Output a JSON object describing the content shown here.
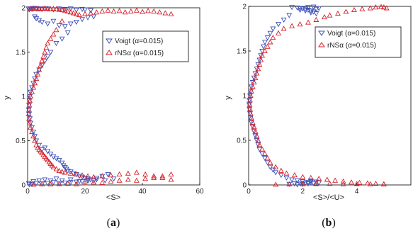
{
  "chart_data": [
    {
      "type": "scatter",
      "panel_caption": "a",
      "xlabel": "<S>",
      "ylabel": "y",
      "xlim": [
        0,
        60
      ],
      "ylim": [
        0,
        2
      ],
      "xticks": [
        "0",
        "20",
        "40",
        "60"
      ],
      "yticks": [
        "0",
        "0.5",
        "1",
        "1.5",
        "2"
      ],
      "legend_position": "top-right",
      "series": [
        {
          "name": "Voigt (α=0.015)",
          "marker": "triangle-down",
          "color": "#3b4fb8",
          "x": [
            0.3,
            0.6,
            1.0,
            1.5,
            2.0,
            3.0,
            4.0,
            5.0,
            6.0,
            2.0,
            3.0,
            5.0,
            7.0,
            9.0,
            11.0,
            13.0,
            15.0,
            17.0,
            19.0,
            20.0,
            22.0,
            2.5,
            3.0,
            4.0,
            5.0,
            7.0,
            9.0,
            11.0,
            13.0,
            15.0,
            17.0,
            19.0,
            21.0,
            23.0,
            14.0,
            12.0,
            10.0,
            8.0,
            7.0,
            6.0,
            5.0,
            4.0,
            3.0,
            2.5,
            2.0,
            1.5,
            1.0,
            0.8,
            0.6,
            0.5,
            0.4,
            0.5,
            0.8,
            1.0,
            1.5,
            2.0,
            2.5,
            3.0,
            4.0,
            5.0,
            6.0,
            7.0,
            8.0,
            9.0,
            10.0,
            11.0,
            12.0,
            12.5,
            13.0,
            13.5,
            14.0,
            15.0,
            16.0,
            17.0,
            18.0,
            19.0,
            20.0,
            21.0,
            22.0,
            24.0,
            26.0,
            28.0,
            2.0,
            4.0,
            6.0,
            8.0,
            10.0,
            12.0,
            15.0,
            18.0,
            21.0,
            24.0,
            27.0,
            30.0,
            1.5,
            3.0,
            5.0,
            7.0,
            9.0,
            11.0,
            13.0,
            15.0,
            17.0,
            19.0,
            21.0,
            23.0,
            0.6,
            0.4
          ],
          "y": [
            1.99,
            1.98,
            1.99,
            1.985,
            1.99,
            1.995,
            1.99,
            1.985,
            1.99,
            1.995,
            1.99,
            1.985,
            1.99,
            1.98,
            1.99,
            1.985,
            1.99,
            1.975,
            1.985,
            1.98,
            1.97,
            1.9,
            1.88,
            1.86,
            1.84,
            1.82,
            1.85,
            1.8,
            1.79,
            1.82,
            1.84,
            1.87,
            1.89,
            1.9,
            1.72,
            1.65,
            1.6,
            1.5,
            1.45,
            1.4,
            1.35,
            1.3,
            1.25,
            1.2,
            1.15,
            1.1,
            1.05,
            1.0,
            0.95,
            0.9,
            0.85,
            0.8,
            0.75,
            0.7,
            0.65,
            0.6,
            0.55,
            0.5,
            0.45,
            0.4,
            0.42,
            0.38,
            0.35,
            0.32,
            0.3,
            0.28,
            0.25,
            0.22,
            0.2,
            0.18,
            0.16,
            0.15,
            0.13,
            0.12,
            0.1,
            0.09,
            0.08,
            0.07,
            0.06,
            0.08,
            0.1,
            0.12,
            0.04,
            0.05,
            0.06,
            0.05,
            0.07,
            0.05,
            0.06,
            0.04,
            0.05,
            0.06,
            0.05,
            0.07,
            0.01,
            0.02,
            0.015,
            0.02,
            0.03,
            0.02,
            0.025,
            0.03,
            0.035,
            0.04,
            0.045,
            0.05,
            0.005,
            0.02
          ]
        },
        {
          "name": "rNSα (α=0.015)",
          "marker": "triangle-up",
          "color": "#d6202a",
          "x": [
            1.0,
            2.0,
            3.0,
            4.0,
            5.0,
            6.0,
            7.0,
            8.0,
            9.0,
            10.0,
            11.0,
            12.0,
            13.0,
            14.0,
            15.0,
            16.0,
            17.0,
            18.0,
            20.0,
            22.0,
            24.0,
            26.0,
            28.0,
            30.0,
            32.0,
            34.0,
            36.0,
            38.0,
            40.0,
            42.0,
            44.0,
            46.0,
            48.0,
            50.0,
            12.0,
            10.0,
            9.0,
            8.0,
            7.0,
            6.5,
            6.0,
            5.5,
            5.0,
            4.5,
            4.0,
            3.5,
            3.0,
            2.5,
            2.0,
            1.5,
            1.0,
            0.8,
            0.6,
            0.5,
            0.4,
            0.5,
            0.7,
            1.0,
            1.5,
            2.0,
            2.5,
            3.0,
            3.5,
            4.0,
            4.5,
            5.0,
            5.5,
            6.0,
            6.5,
            7.0,
            7.5,
            8.0,
            8.5,
            9.0,
            10.0,
            11.0,
            12.0,
            13.0,
            15.0,
            17.0,
            19.0,
            21.0,
            23.0,
            26.0,
            29.0,
            32.0,
            35.0,
            38.0,
            41.0,
            44.0,
            47.0,
            50.0,
            2.0,
            5.0,
            8.0,
            11.0,
            14.0,
            17.0,
            20.0,
            23.0,
            26.0,
            29.0,
            32.0,
            35.0,
            38.0,
            41.0,
            44.0,
            47.0,
            50.0
          ],
          "y": [
            1.99,
            1.995,
            1.99,
            1.985,
            1.99,
            1.995,
            1.99,
            1.985,
            1.99,
            1.985,
            1.98,
            1.975,
            1.97,
            1.96,
            1.95,
            1.94,
            1.93,
            1.92,
            1.93,
            1.94,
            1.95,
            1.96,
            1.97,
            1.96,
            1.965,
            1.95,
            1.96,
            1.97,
            1.955,
            1.965,
            1.96,
            1.95,
            1.94,
            1.93,
            1.85,
            1.75,
            1.7,
            1.65,
            1.6,
            1.55,
            1.5,
            1.45,
            1.4,
            1.35,
            1.3,
            1.25,
            1.2,
            1.15,
            1.1,
            1.05,
            1.0,
            0.95,
            0.9,
            0.85,
            0.8,
            0.75,
            0.7,
            0.65,
            0.6,
            0.55,
            0.5,
            0.45,
            0.42,
            0.4,
            0.38,
            0.36,
            0.34,
            0.32,
            0.3,
            0.28,
            0.26,
            0.24,
            0.22,
            0.2,
            0.18,
            0.16,
            0.15,
            0.14,
            0.13,
            0.12,
            0.11,
            0.1,
            0.09,
            0.1,
            0.11,
            0.12,
            0.13,
            0.14,
            0.12,
            0.1,
            0.08,
            0.06,
            0.005,
            0.01,
            0.008,
            0.012,
            0.015,
            0.01,
            0.02,
            0.03,
            0.025,
            0.04,
            0.05,
            0.06,
            0.05,
            0.07,
            0.08,
            0.1,
            0.12
          ]
        }
      ]
    },
    {
      "type": "scatter",
      "panel_caption": "b",
      "xlabel": "<S>/<U>",
      "ylabel": "y",
      "xlim": [
        0,
        6
      ],
      "ylim": [
        0,
        2
      ],
      "xticks": [
        "0",
        "2",
        "4"
      ],
      "yticks": [
        "0",
        "0.5",
        "1",
        "1.5",
        "2"
      ],
      "legend_position": "top-right",
      "series": [
        {
          "name": "Voigt (α=0.015)",
          "marker": "triangle-down",
          "color": "#3b4fb8",
          "x": [
            1.6,
            1.8,
            1.9,
            2.0,
            2.1,
            2.2,
            2.3,
            2.4,
            2.5,
            2.6,
            1.9,
            2.1,
            2.3,
            2.5,
            2.2,
            2.4,
            1.5,
            1.3,
            1.1,
            0.9,
            0.8,
            0.7,
            0.6,
            0.55,
            0.5,
            0.45,
            0.4,
            0.35,
            0.3,
            0.25,
            0.2,
            0.15,
            0.1,
            0.08,
            0.05,
            0.03,
            0.02,
            0.03,
            0.05,
            0.07,
            0.1,
            0.15,
            0.2,
            0.25,
            0.3,
            0.35,
            0.4,
            0.5,
            0.6,
            0.7,
            0.8,
            0.9,
            1.0,
            1.2,
            1.4,
            1.6,
            1.8,
            2.0,
            2.2,
            2.4,
            1.5,
            1.7,
            1.9,
            2.1,
            2.3,
            2.5,
            1.8,
            2.0,
            2.2,
            2.4,
            2.6,
            2.0,
            2.3
          ],
          "y": [
            1.99,
            1.985,
            1.98,
            1.975,
            1.97,
            1.96,
            1.95,
            1.94,
            1.97,
            1.98,
            1.96,
            1.95,
            1.93,
            1.92,
            1.99,
            1.995,
            1.9,
            1.85,
            1.8,
            1.75,
            1.7,
            1.65,
            1.6,
            1.55,
            1.5,
            1.45,
            1.4,
            1.35,
            1.3,
            1.25,
            1.2,
            1.15,
            1.1,
            1.05,
            1.0,
            0.95,
            0.9,
            0.85,
            0.8,
            0.75,
            0.7,
            0.65,
            0.6,
            0.55,
            0.5,
            0.45,
            0.4,
            0.35,
            0.3,
            0.25,
            0.2,
            0.17,
            0.14,
            0.11,
            0.08,
            0.06,
            0.05,
            0.04,
            0.03,
            0.02,
            0.01,
            0.015,
            0.02,
            0.025,
            0.03,
            0.035,
            0.005,
            0.01,
            0.015,
            0.02,
            0.025,
            0.04,
            0.05
          ]
        },
        {
          "name": "rNSα (α=0.015)",
          "marker": "triangle-up",
          "color": "#d6202a",
          "x": [
            3.0,
            3.3,
            3.6,
            3.9,
            4.2,
            4.5,
            4.7,
            4.9,
            5.0,
            5.1,
            2.8,
            2.5,
            2.2,
            1.9,
            1.6,
            1.3,
            1.1,
            0.9,
            0.8,
            0.7,
            0.6,
            0.5,
            0.45,
            0.4,
            0.35,
            0.3,
            0.25,
            0.2,
            0.15,
            0.1,
            0.07,
            0.05,
            0.04,
            0.05,
            0.07,
            0.1,
            0.15,
            0.2,
            0.25,
            0.3,
            0.35,
            0.4,
            0.5,
            0.6,
            0.7,
            0.8,
            1.0,
            1.2,
            1.4,
            1.7,
            2.0,
            2.3,
            2.6,
            2.9,
            3.2,
            3.5,
            3.8,
            4.1,
            4.4,
            4.7,
            5.0,
            1.0,
            1.5,
            2.0,
            2.5,
            3.0,
            3.5,
            4.0,
            4.5,
            5.0
          ],
          "y": [
            1.9,
            1.92,
            1.94,
            1.96,
            1.97,
            1.98,
            1.99,
            1.995,
            1.99,
            1.98,
            1.88,
            1.85,
            1.82,
            1.8,
            1.78,
            1.75,
            1.7,
            1.65,
            1.6,
            1.55,
            1.5,
            1.45,
            1.4,
            1.35,
            1.3,
            1.25,
            1.2,
            1.15,
            1.1,
            1.05,
            1.0,
            0.95,
            0.9,
            0.85,
            0.8,
            0.75,
            0.7,
            0.65,
            0.6,
            0.55,
            0.5,
            0.45,
            0.4,
            0.35,
            0.3,
            0.25,
            0.2,
            0.16,
            0.13,
            0.11,
            0.09,
            0.08,
            0.07,
            0.06,
            0.05,
            0.04,
            0.03,
            0.025,
            0.02,
            0.015,
            0.01,
            0.005,
            0.008,
            0.01,
            0.012,
            0.015,
            0.01,
            0.012,
            0.01,
            0.008
          ]
        }
      ]
    }
  ]
}
